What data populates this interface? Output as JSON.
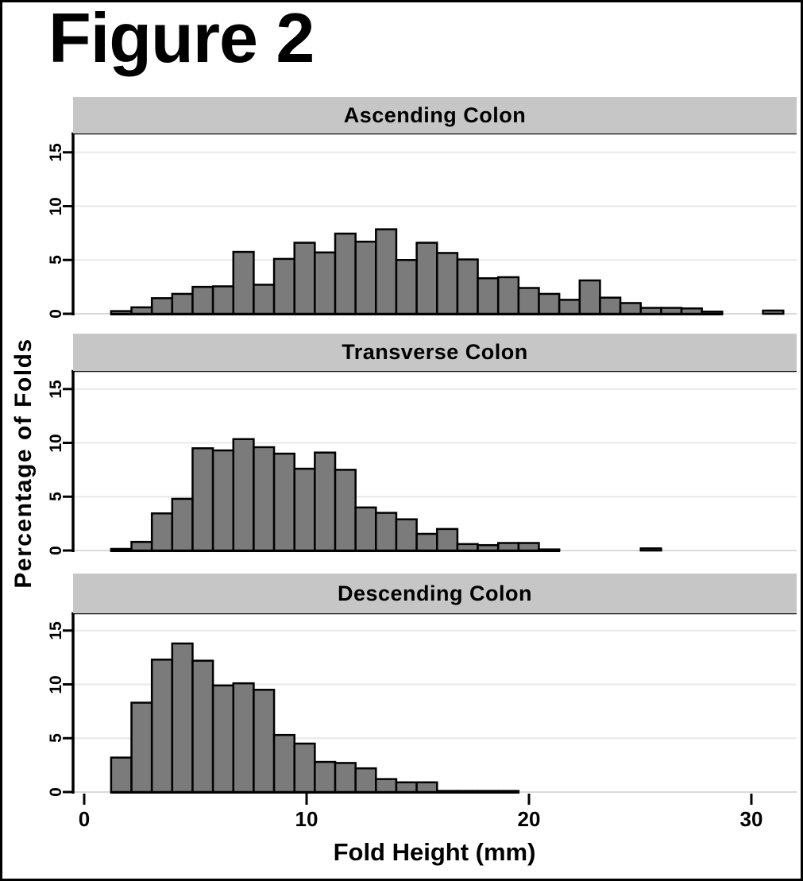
{
  "figure_title": "Figure 2",
  "axes": {
    "x_label": "Fold Height (mm)",
    "y_label": "Percentage of Folds",
    "x_ticks": [
      "0",
      "10",
      "20",
      "30"
    ],
    "y_ticks": [
      "0",
      "5",
      "10",
      "15"
    ]
  },
  "colors": {
    "bar_fill": "#7b7b7b",
    "bar_stroke": "#000000",
    "band_bg": "#c6c6c6",
    "gridline": "#e8e8e8",
    "baseline_ext": "#d9d9d9",
    "axis": "#000000"
  },
  "chart_data": [
    {
      "type": "bar",
      "title": "Ascending Colon",
      "xlabel": "Fold Height (mm)",
      "ylabel": "Percentage of Folds",
      "xlim": [
        0,
        32
      ],
      "ylim": [
        0,
        16.7
      ],
      "x_ticks": [
        0,
        10,
        20,
        30
      ],
      "y_ticks": [
        0,
        5,
        10,
        15
      ],
      "grid": true,
      "bin_start_mm": 1.21,
      "bin_width_mm": 0.916,
      "values": [
        0.25,
        0.6,
        1.45,
        1.85,
        2.5,
        2.55,
        5.75,
        2.7,
        5.1,
        6.6,
        5.7,
        7.45,
        6.7,
        7.85,
        5.0,
        6.6,
        5.65,
        5.05,
        3.3,
        3.4,
        2.4,
        1.85,
        1.3,
        3.1,
        1.5,
        1.0,
        0.55,
        0.55,
        0.5,
        0.2,
        0,
        0,
        0.3
      ]
    },
    {
      "type": "bar",
      "title": "Transverse Colon",
      "xlabel": "Fold Height (mm)",
      "ylabel": "Percentage of Folds",
      "xlim": [
        0,
        32
      ],
      "ylim": [
        0,
        16.7
      ],
      "x_ticks": [
        0,
        10,
        20,
        30
      ],
      "y_ticks": [
        0,
        5,
        10,
        15
      ],
      "grid": true,
      "bin_start_mm": 1.21,
      "bin_width_mm": 0.916,
      "values": [
        0.15,
        0.8,
        3.45,
        4.8,
        9.5,
        9.3,
        10.35,
        9.6,
        9.0,
        7.6,
        9.1,
        7.5,
        4.0,
        3.5,
        2.9,
        1.55,
        2.0,
        0.6,
        0.5,
        0.7,
        0.7,
        0.1,
        0,
        0,
        0,
        0,
        0.2
      ]
    },
    {
      "type": "bar",
      "title": "Descending Colon",
      "xlabel": "Fold Height (mm)",
      "ylabel": "Percentage of Folds",
      "xlim": [
        0,
        32
      ],
      "ylim": [
        0,
        16.7
      ],
      "x_ticks": [
        0,
        10,
        20,
        30
      ],
      "y_ticks": [
        0,
        5,
        10,
        15
      ],
      "grid": true,
      "bin_start_mm": 1.21,
      "bin_width_mm": 0.916,
      "values": [
        3.2,
        8.3,
        12.3,
        13.8,
        12.2,
        9.9,
        10.1,
        9.5,
        5.3,
        4.5,
        2.8,
        2.7,
        2.2,
        1.2,
        0.9,
        0.9,
        0.1,
        0.1,
        0.1,
        0.1
      ]
    }
  ]
}
